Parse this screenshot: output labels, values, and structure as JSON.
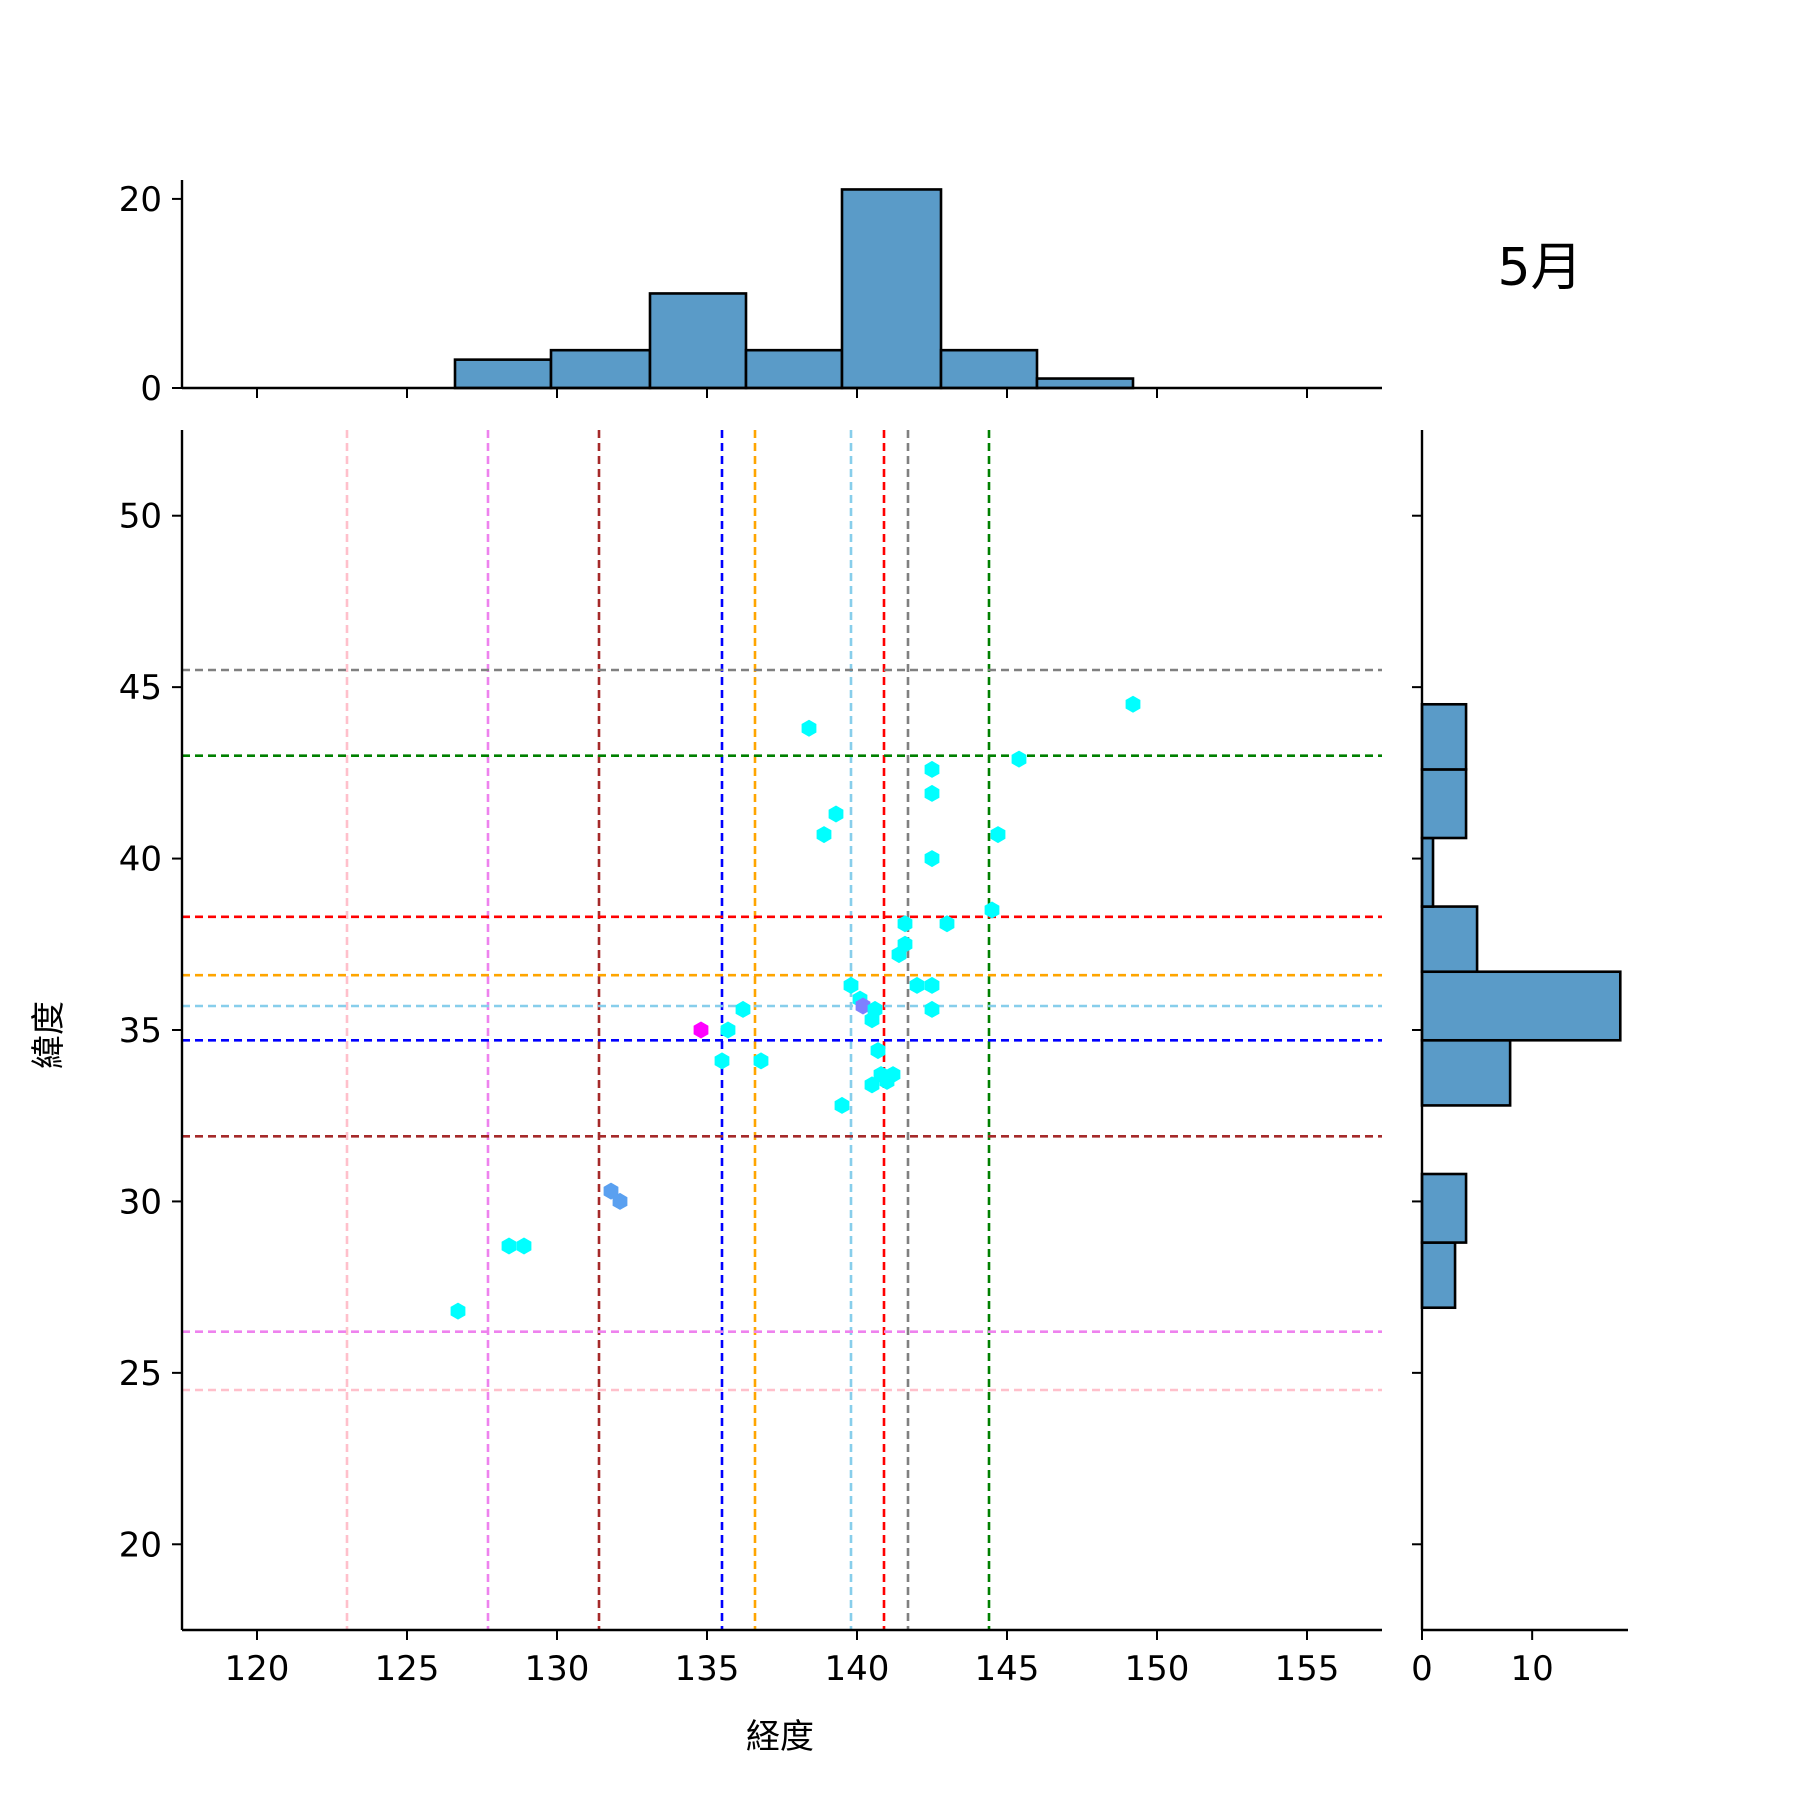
{
  "chart_data": {
    "type": "scatter",
    "title": "5月",
    "xlabel": "経度",
    "ylabel": "緯度",
    "xlim": [
      117.5,
      157.5
    ],
    "ylim": [
      17.5,
      52.5
    ],
    "x_ticks": [
      120,
      125,
      130,
      135,
      140,
      145,
      150,
      155
    ],
    "y_ticks": [
      20,
      25,
      30,
      35,
      40,
      45,
      50
    ],
    "grid": false,
    "legend": "none",
    "points": [
      {
        "x": 126.7,
        "y": 26.8,
        "color": "#00ffff"
      },
      {
        "x": 128.4,
        "y": 28.7,
        "color": "#00ffff"
      },
      {
        "x": 128.9,
        "y": 28.7,
        "color": "#00ffff"
      },
      {
        "x": 131.8,
        "y": 30.3,
        "color": "#5aa0f0"
      },
      {
        "x": 132.1,
        "y": 30.0,
        "color": "#5aa0f0"
      },
      {
        "x": 134.8,
        "y": 35.0,
        "color": "#ff00ff"
      },
      {
        "x": 135.5,
        "y": 34.1,
        "color": "#00ffff"
      },
      {
        "x": 135.7,
        "y": 35.0,
        "color": "#00ffff"
      },
      {
        "x": 136.2,
        "y": 35.6,
        "color": "#00ffff"
      },
      {
        "x": 136.8,
        "y": 34.1,
        "color": "#00ffff"
      },
      {
        "x": 138.4,
        "y": 43.8,
        "color": "#00ffff"
      },
      {
        "x": 138.9,
        "y": 40.7,
        "color": "#00ffff"
      },
      {
        "x": 139.3,
        "y": 41.3,
        "color": "#00ffff"
      },
      {
        "x": 139.5,
        "y": 32.8,
        "color": "#00ffff"
      },
      {
        "x": 139.8,
        "y": 36.3,
        "color": "#00ffff"
      },
      {
        "x": 140.1,
        "y": 35.9,
        "color": "#00ffff"
      },
      {
        "x": 140.2,
        "y": 35.7,
        "color": "#7f7fff"
      },
      {
        "x": 140.5,
        "y": 35.3,
        "color": "#00ffff"
      },
      {
        "x": 140.6,
        "y": 35.6,
        "color": "#00ffff"
      },
      {
        "x": 140.7,
        "y": 34.4,
        "color": "#00ffff"
      },
      {
        "x": 140.5,
        "y": 33.4,
        "color": "#00ffff"
      },
      {
        "x": 140.8,
        "y": 33.7,
        "color": "#00ffff"
      },
      {
        "x": 141.0,
        "y": 33.5,
        "color": "#00ffff"
      },
      {
        "x": 141.2,
        "y": 33.7,
        "color": "#00ffff"
      },
      {
        "x": 141.4,
        "y": 37.2,
        "color": "#00ffff"
      },
      {
        "x": 141.6,
        "y": 37.5,
        "color": "#00ffff"
      },
      {
        "x": 141.6,
        "y": 38.1,
        "color": "#00ffff"
      },
      {
        "x": 142.0,
        "y": 36.3,
        "color": "#00ffff"
      },
      {
        "x": 142.5,
        "y": 36.3,
        "color": "#00ffff"
      },
      {
        "x": 142.5,
        "y": 35.6,
        "color": "#00ffff"
      },
      {
        "x": 142.5,
        "y": 40.0,
        "color": "#00ffff"
      },
      {
        "x": 142.5,
        "y": 41.9,
        "color": "#00ffff"
      },
      {
        "x": 142.5,
        "y": 42.6,
        "color": "#00ffff"
      },
      {
        "x": 143.0,
        "y": 38.1,
        "color": "#00ffff"
      },
      {
        "x": 144.5,
        "y": 38.5,
        "color": "#00ffff"
      },
      {
        "x": 144.7,
        "y": 40.7,
        "color": "#00ffff"
      },
      {
        "x": 145.4,
        "y": 42.9,
        "color": "#00ffff"
      },
      {
        "x": 149.2,
        "y": 44.5,
        "color": "#00ffff"
      }
    ],
    "vlines": [
      {
        "x": 123.0,
        "color": "#ffc0cb"
      },
      {
        "x": 127.7,
        "color": "#ee82ee"
      },
      {
        "x": 131.4,
        "color": "#a52a2a"
      },
      {
        "x": 135.5,
        "color": "#0000ff"
      },
      {
        "x": 136.6,
        "color": "#ffa500"
      },
      {
        "x": 139.8,
        "color": "#87ceeb"
      },
      {
        "x": 140.9,
        "color": "#ff0000"
      },
      {
        "x": 141.7,
        "color": "#808080"
      },
      {
        "x": 144.4,
        "color": "#008000"
      }
    ],
    "hlines": [
      {
        "y": 45.5,
        "color": "#808080"
      },
      {
        "y": 43.0,
        "color": "#008000"
      },
      {
        "y": 38.3,
        "color": "#ff0000"
      },
      {
        "y": 36.6,
        "color": "#ffa500"
      },
      {
        "y": 35.7,
        "color": "#87ceeb"
      },
      {
        "y": 34.7,
        "color": "#0000ff"
      },
      {
        "y": 31.9,
        "color": "#a52a2a"
      },
      {
        "y": 26.2,
        "color": "#ee82ee"
      },
      {
        "y": 24.5,
        "color": "#ffc0cb"
      }
    ],
    "top_histogram": {
      "ylim": [
        0,
        22
      ],
      "y_ticks": [
        0,
        20
      ],
      "bins": [
        {
          "x0": 126.6,
          "x1": 129.8,
          "count": 3
        },
        {
          "x0": 129.8,
          "x1": 133.1,
          "count": 4
        },
        {
          "x0": 133.1,
          "x1": 136.3,
          "count": 10
        },
        {
          "x0": 136.3,
          "x1": 139.5,
          "count": 4
        },
        {
          "x0": 139.5,
          "x1": 142.8,
          "count": 21
        },
        {
          "x0": 142.8,
          "x1": 146.0,
          "count": 4
        },
        {
          "x0": 146.0,
          "x1": 149.2,
          "count": 1
        }
      ]
    },
    "right_histogram": {
      "xlim": [
        0,
        18.7
      ],
      "x_ticks": [
        0,
        10
      ],
      "bins": [
        {
          "y0": 26.9,
          "y1": 28.8,
          "count": 3
        },
        {
          "y0": 28.8,
          "y1": 30.8,
          "count": 4
        },
        {
          "y0": 30.8,
          "y1": 32.8,
          "count": 0
        },
        {
          "y0": 32.8,
          "y1": 34.7,
          "count": 8
        },
        {
          "y0": 34.7,
          "y1": 36.7,
          "count": 18
        },
        {
          "y0": 36.7,
          "y1": 38.6,
          "count": 5
        },
        {
          "y0": 38.6,
          "y1": 40.6,
          "count": 1
        },
        {
          "y0": 40.6,
          "y1": 42.6,
          "count": 4
        },
        {
          "y0": 42.6,
          "y1": 44.5,
          "count": 4
        }
      ]
    },
    "colors": {
      "hist_fill": "#5a9bc8",
      "hist_edge": "#000000",
      "axis": "#000000"
    }
  }
}
